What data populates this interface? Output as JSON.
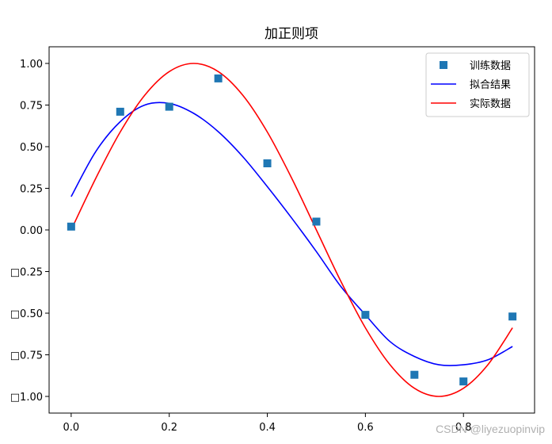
{
  "chart_data": {
    "type": "line",
    "title": "加正则项",
    "xlabel": "",
    "ylabel": "",
    "xlim": [
      -0.045,
      0.945
    ],
    "ylim": [
      -1.1,
      1.1
    ],
    "xticks": [
      0.0,
      0.2,
      0.4,
      0.6,
      0.8
    ],
    "xtick_labels": [
      "0.0",
      "0.2",
      "0.4",
      "0.6",
      "0.8"
    ],
    "yticks": [
      1.0,
      0.75,
      0.5,
      0.25,
      0.0,
      -0.25,
      -0.5,
      -0.75,
      -1.0
    ],
    "ytick_labels": [
      "1.00",
      "0.75",
      "0.50",
      "0.25",
      "0.00",
      "□0.25",
      "□0.50",
      "□0.75",
      "□1.00"
    ],
    "grid": false,
    "legend_position": "top-right",
    "series": [
      {
        "name": "训练数据",
        "kind": "scatter",
        "marker": "square",
        "color": "#1f77b4",
        "x": [
          0.0,
          0.1,
          0.2,
          0.3,
          0.4,
          0.5,
          0.6,
          0.7,
          0.8,
          0.9
        ],
        "y": [
          0.02,
          0.71,
          0.74,
          0.91,
          0.4,
          0.05,
          -0.51,
          -0.87,
          -0.91,
          -0.52
        ]
      },
      {
        "name": "拟合结果",
        "kind": "line",
        "color": "#0000ff",
        "x": [
          0.0,
          0.05,
          0.1,
          0.15,
          0.2,
          0.25,
          0.3,
          0.35,
          0.4,
          0.45,
          0.5,
          0.55,
          0.6,
          0.65,
          0.7,
          0.75,
          0.8,
          0.85,
          0.9
        ],
        "y": [
          0.2,
          0.47,
          0.65,
          0.75,
          0.76,
          0.7,
          0.59,
          0.44,
          0.26,
          0.07,
          -0.13,
          -0.34,
          -0.51,
          -0.67,
          -0.76,
          -0.81,
          -0.81,
          -0.78,
          -0.7
        ]
      },
      {
        "name": "实际数据",
        "kind": "line",
        "color": "#ff0000",
        "x": [
          0.0,
          0.05,
          0.1,
          0.15,
          0.2,
          0.25,
          0.3,
          0.35,
          0.4,
          0.45,
          0.5,
          0.55,
          0.6,
          0.65,
          0.7,
          0.75,
          0.8,
          0.85,
          0.9
        ],
        "y": [
          0.0,
          0.309,
          0.588,
          0.809,
          0.951,
          1.0,
          0.951,
          0.809,
          0.588,
          0.309,
          0.0,
          -0.309,
          -0.588,
          -0.809,
          -0.951,
          -1.0,
          -0.951,
          -0.809,
          -0.588
        ]
      }
    ]
  },
  "watermark": "CSDN @liyezuopinvip"
}
